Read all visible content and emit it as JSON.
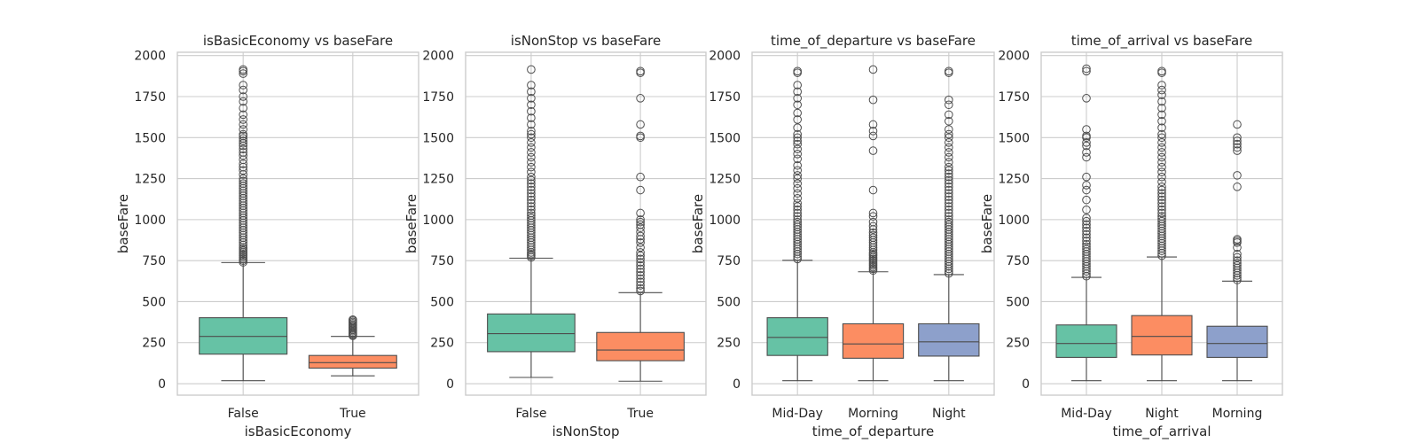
{
  "chart_data": [
    {
      "type": "box",
      "title": "isBasicEconomy vs baseFare",
      "xlabel": "isBasicEconomy",
      "ylabel": "baseFare",
      "ylim": [
        -70,
        2020
      ],
      "yticks": [
        0,
        250,
        500,
        750,
        1000,
        1250,
        1500,
        1750,
        2000
      ],
      "grid": true,
      "categories": [
        "False",
        "True"
      ],
      "colors": [
        "#66c2a5",
        "#fc8d62"
      ],
      "boxes": [
        {
          "whislo": 18,
          "q1": 180,
          "med": 288,
          "q3": 402,
          "whishi": 738,
          "fliers": [
            740,
            750,
            760,
            770,
            780,
            790,
            800,
            810,
            820,
            830,
            845,
            860,
            875,
            890,
            905,
            920,
            935,
            950,
            965,
            980,
            995,
            1010,
            1025,
            1040,
            1055,
            1070,
            1085,
            1100,
            1115,
            1130,
            1145,
            1160,
            1175,
            1190,
            1205,
            1220,
            1235,
            1250,
            1275,
            1300,
            1320,
            1340,
            1365,
            1390,
            1410,
            1430,
            1450,
            1465,
            1480,
            1495,
            1510,
            1520,
            1550,
            1580,
            1610,
            1640,
            1680,
            1720,
            1750,
            1790,
            1820,
            1890,
            1905,
            1915
          ]
        },
        {
          "whislo": 48,
          "q1": 95,
          "med": 128,
          "q3": 172,
          "whishi": 288,
          "fliers": [
            292,
            298,
            305,
            312,
            320,
            328,
            336,
            344,
            352,
            360,
            368,
            376,
            384,
            390
          ]
        }
      ]
    },
    {
      "type": "box",
      "title": "isNonStop vs baseFare",
      "xlabel": "isNonStop",
      "ylabel": "baseFare",
      "ylim": [
        -70,
        2020
      ],
      "yticks": [
        0,
        250,
        500,
        750,
        1000,
        1250,
        1500,
        1750,
        2000
      ],
      "grid": true,
      "categories": [
        "False",
        "True"
      ],
      "colors": [
        "#66c2a5",
        "#fc8d62"
      ],
      "boxes": [
        {
          "whislo": 38,
          "q1": 195,
          "med": 305,
          "q3": 425,
          "whishi": 765,
          "fliers": [
            770,
            780,
            790,
            800,
            815,
            830,
            845,
            860,
            875,
            890,
            905,
            920,
            935,
            950,
            965,
            980,
            995,
            1010,
            1025,
            1040,
            1060,
            1080,
            1100,
            1120,
            1140,
            1160,
            1180,
            1200,
            1220,
            1240,
            1260,
            1290,
            1320,
            1350,
            1380,
            1410,
            1440,
            1470,
            1500,
            1520,
            1540,
            1580,
            1620,
            1660,
            1700,
            1740,
            1780,
            1820,
            1915
          ]
        },
        {
          "whislo": 15,
          "q1": 140,
          "med": 205,
          "q3": 312,
          "whishi": 555,
          "fliers": [
            565,
            580,
            600,
            620,
            640,
            660,
            680,
            700,
            720,
            740,
            760,
            780,
            800,
            830,
            860,
            880,
            900,
            925,
            950,
            970,
            985,
            1000,
            1040,
            1180,
            1260,
            1500,
            1510,
            1580,
            1740,
            1895,
            1905
          ]
        }
      ]
    },
    {
      "type": "box",
      "title": "time_of_departure vs baseFare",
      "xlabel": "time_of_departure",
      "ylabel": "baseFare",
      "ylim": [
        -70,
        2020
      ],
      "yticks": [
        0,
        250,
        500,
        750,
        1000,
        1250,
        1500,
        1750,
        2000
      ],
      "grid": true,
      "categories": [
        "Mid-Day",
        "Morning",
        "Night"
      ],
      "colors": [
        "#66c2a5",
        "#fc8d62",
        "#8da0cb"
      ],
      "boxes": [
        {
          "whislo": 18,
          "q1": 172,
          "med": 282,
          "q3": 402,
          "whishi": 752,
          "fliers": [
            760,
            775,
            790,
            805,
            820,
            835,
            850,
            865,
            880,
            895,
            910,
            925,
            940,
            955,
            970,
            985,
            1000,
            1020,
            1040,
            1060,
            1080,
            1100,
            1130,
            1160,
            1190,
            1220,
            1250,
            1270,
            1300,
            1330,
            1370,
            1400,
            1430,
            1460,
            1480,
            1500,
            1520,
            1560,
            1610,
            1650,
            1700,
            1740,
            1780,
            1820,
            1895,
            1905
          ]
        },
        {
          "whislo": 18,
          "q1": 155,
          "med": 242,
          "q3": 365,
          "whishi": 682,
          "fliers": [
            690,
            700,
            710,
            720,
            730,
            740,
            750,
            760,
            770,
            780,
            790,
            800,
            815,
            830,
            845,
            860,
            875,
            890,
            905,
            920,
            940,
            960,
            985,
            1020,
            1040,
            1180,
            1420,
            1510,
            1540,
            1580,
            1730,
            1915
          ]
        },
        {
          "whislo": 18,
          "q1": 168,
          "med": 255,
          "q3": 365,
          "whishi": 665,
          "fliers": [
            672,
            685,
            700,
            715,
            730,
            745,
            760,
            775,
            790,
            805,
            820,
            835,
            850,
            865,
            880,
            895,
            910,
            925,
            940,
            955,
            970,
            985,
            1000,
            1020,
            1040,
            1060,
            1080,
            1100,
            1120,
            1140,
            1160,
            1180,
            1200,
            1220,
            1240,
            1260,
            1280,
            1300,
            1320,
            1350,
            1380,
            1410,
            1440,
            1470,
            1500,
            1520,
            1550,
            1600,
            1640,
            1700,
            1730,
            1895,
            1905
          ]
        }
      ]
    },
    {
      "type": "box",
      "title": "time_of_arrival vs baseFare",
      "xlabel": "time_of_arrival",
      "ylabel": "baseFare",
      "ylim": [
        -70,
        2020
      ],
      "yticks": [
        0,
        250,
        500,
        750,
        1000,
        1250,
        1500,
        1750,
        2000
      ],
      "grid": true,
      "categories": [
        "Mid-Day",
        "Night",
        "Morning"
      ],
      "colors": [
        "#66c2a5",
        "#fc8d62",
        "#8da0cb"
      ],
      "boxes": [
        {
          "whislo": 18,
          "q1": 160,
          "med": 245,
          "q3": 358,
          "whishi": 648,
          "fliers": [
            655,
            670,
            685,
            700,
            715,
            730,
            745,
            760,
            775,
            790,
            805,
            820,
            835,
            850,
            870,
            890,
            910,
            930,
            950,
            970,
            990,
            1010,
            1060,
            1120,
            1180,
            1210,
            1260,
            1380,
            1410,
            1450,
            1470,
            1500,
            1510,
            1550,
            1740,
            1905,
            1920
          ]
        },
        {
          "whislo": 18,
          "q1": 175,
          "med": 288,
          "q3": 415,
          "whishi": 772,
          "fliers": [
            780,
            795,
            810,
            825,
            840,
            855,
            870,
            885,
            900,
            915,
            930,
            945,
            960,
            975,
            990,
            1005,
            1020,
            1040,
            1060,
            1080,
            1100,
            1120,
            1140,
            1160,
            1180,
            1200,
            1230,
            1260,
            1290,
            1320,
            1350,
            1380,
            1410,
            1440,
            1470,
            1500,
            1520,
            1560,
            1600,
            1640,
            1680,
            1720,
            1760,
            1790,
            1820,
            1895,
            1905
          ]
        },
        {
          "whislo": 18,
          "q1": 160,
          "med": 245,
          "q3": 350,
          "whishi": 625,
          "fliers": [
            632,
            645,
            660,
            675,
            690,
            705,
            720,
            735,
            750,
            770,
            790,
            830,
            860,
            870,
            880,
            1200,
            1270,
            1420,
            1440,
            1460,
            1480,
            1500,
            1580
          ]
        }
      ]
    }
  ]
}
